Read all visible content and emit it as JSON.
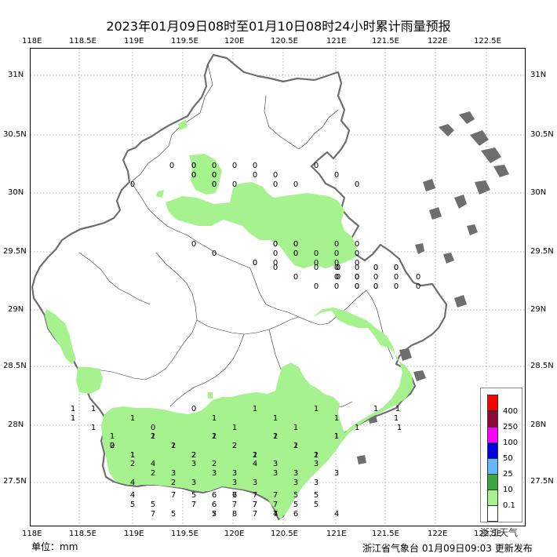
{
  "title": "2023年01月09日08时至01月10日08时24小时累计雨量预报",
  "lon_ticks_top": [
    "118E",
    "118.5E",
    "119E",
    "119.5E",
    "120E",
    "120.5E",
    "121E",
    "121.5E",
    "122E",
    "122.5E"
  ],
  "lon_ticks_bottom": [
    "118E",
    "118.5E",
    "119E",
    "119.5E",
    "120E",
    "120.5E",
    "121E",
    "121.5E",
    "122E",
    "122.5E"
  ],
  "lat_ticks_left": [
    "31N",
    "30.5N",
    "30N",
    "29.5N",
    "29N",
    "28.5N",
    "28N",
    "27.5N"
  ],
  "lat_ticks_right": [
    "31N",
    "30.5N",
    "30N",
    "29.5N",
    "29N",
    "28.5N",
    "28N",
    "27.5N"
  ],
  "unit_label": "单位：mm",
  "publisher": "浙江省气象台  01月09日09:03 更新发布",
  "watermark": "浙江天气",
  "legend": [
    {
      "label": "400",
      "color": "#ff0000"
    },
    {
      "label": "250",
      "color": "#8b0a3a"
    },
    {
      "label": "100",
      "color": "#ff00ff"
    },
    {
      "label": "50",
      "color": "#0000e0"
    },
    {
      "label": "25",
      "color": "#63b8ff"
    },
    {
      "label": "10",
      "color": "#3ca73c"
    },
    {
      "label": "0.1",
      "color": "#a6f28f"
    },
    {
      "label": "",
      "color": "#ffffff"
    }
  ],
  "rain_color": "#a6f28f",
  "station_values": [
    [
      "0",
      "0",
      "0",
      "0",
      "0",
      "0",
      "0",
      "0",
      "0",
      "0",
      "0",
      "0",
      "0",
      "0",
      "0",
      "0",
      "0",
      "0",
      "0",
      "0",
      "0"
    ],
    [
      "0",
      "0",
      "0",
      "0",
      "0",
      "0",
      "0",
      "0",
      "0",
      "0",
      "0",
      "0",
      "0",
      "0",
      "0",
      "0",
      "0",
      "0",
      "0",
      "0"
    ],
    [
      "0",
      "0",
      "0",
      "0",
      "0",
      "0",
      "0",
      "0",
      "0",
      "0",
      "0",
      "0",
      "0",
      "0",
      "0",
      "0",
      "0",
      "0",
      "0",
      "0",
      "0",
      "0",
      "0",
      "0",
      "0",
      "0",
      "0",
      "0"
    ],
    [
      "1",
      "1",
      "1",
      "1",
      "1",
      "0",
      "0",
      "1",
      "1",
      "1",
      "1",
      "1",
      "1",
      "1",
      "1",
      "1",
      "1",
      "1",
      "1"
    ],
    [
      "1",
      "0",
      "1",
      "1",
      "2",
      "2",
      "1",
      "2",
      "1",
      "2",
      "1",
      "1",
      "1",
      "2",
      "1",
      "2",
      "1",
      "2",
      "2",
      "2",
      "2",
      "1",
      "2",
      "2",
      "1"
    ],
    [
      "2",
      "2",
      "2",
      "3",
      "3",
      "3",
      "4",
      "3",
      "3",
      "3",
      "3",
      "4",
      "4",
      "3",
      "3",
      "2",
      "3",
      "3",
      "3",
      "3",
      "3"
    ],
    [
      "4",
      "5",
      "5",
      "5",
      "6",
      "8",
      "7",
      "7",
      "6",
      "5",
      "5",
      "7",
      "7",
      "7",
      "7",
      "7",
      "7",
      "4",
      "5",
      "5",
      "4",
      "6",
      "7",
      "7",
      "7",
      "5",
      "5",
      "6",
      "7",
      "7"
    ]
  ]
}
